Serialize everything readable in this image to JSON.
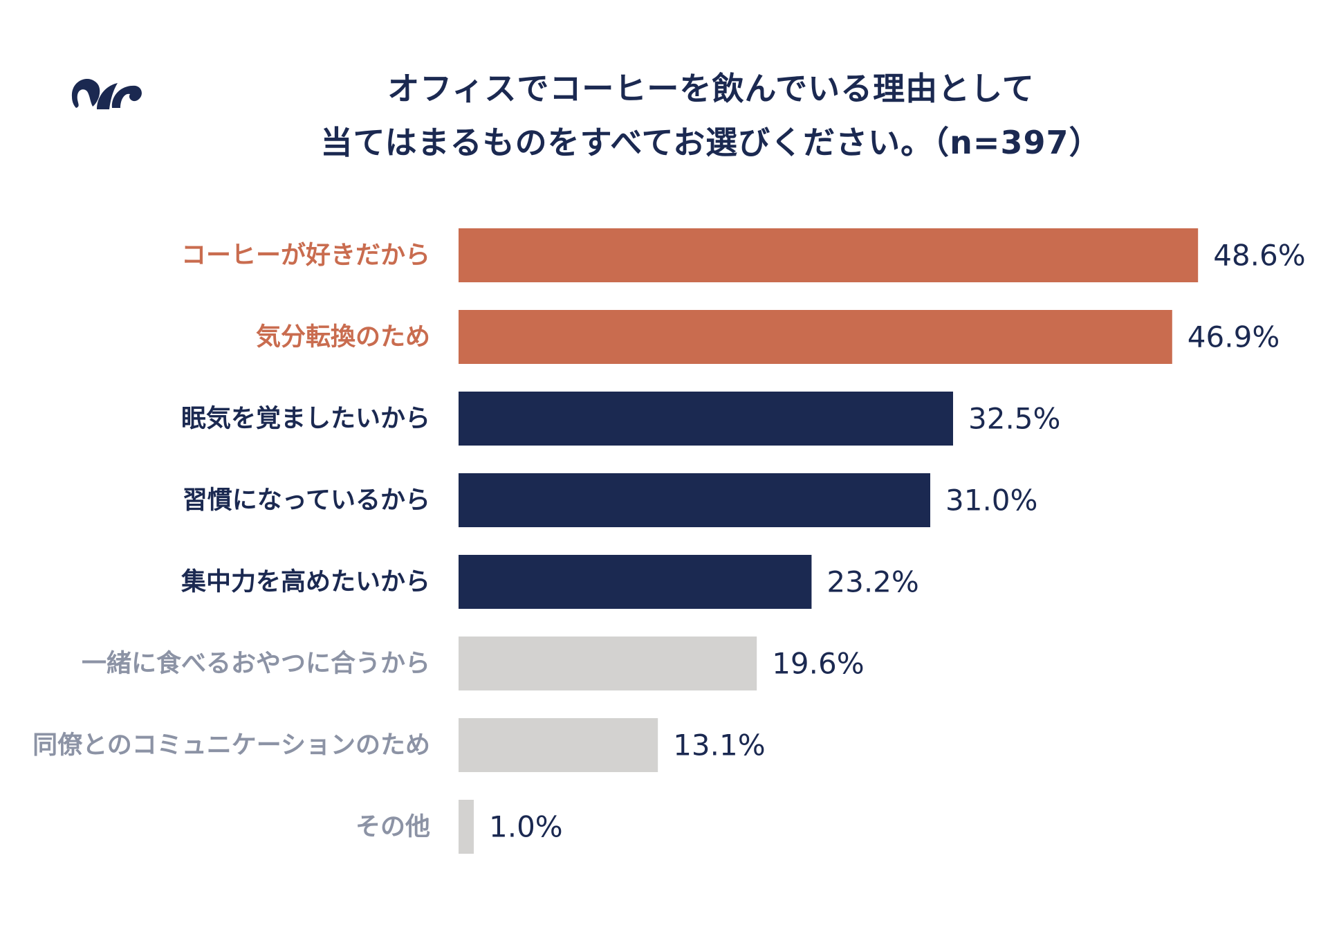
{
  "chart_data": {
    "type": "bar",
    "orientation": "horizontal",
    "title_lines": [
      "オフィスでコーヒーを飲んでいる理由として",
      "当てはまるものをすべてお選びください。（n=397）"
    ],
    "categories": [
      "コーヒーが好きだから",
      "気分転換のため",
      "眠気を覚ましたいから",
      "習慣になっているから",
      "集中力を高めたいから",
      "一緒に食べるおやつに合うから",
      "同僚とのコミュニケーションのため",
      "その他"
    ],
    "values": [
      48.6,
      46.9,
      32.5,
      31.0,
      23.2,
      19.6,
      13.1,
      1.0
    ],
    "value_labels": [
      "48.6%",
      "46.9%",
      "32.5%",
      "31.0%",
      "23.2%",
      "19.6%",
      "13.1%",
      "1.0%"
    ],
    "unit": "%",
    "xlim": [
      0,
      50
    ],
    "grid": false,
    "legend": "none",
    "groups": [
      "top",
      "top",
      "mid",
      "mid",
      "mid",
      "low",
      "low",
      "low"
    ],
    "group_colors": {
      "top": {
        "bar": "#c96c4f",
        "label": "#c96c4f"
      },
      "mid": {
        "bar": "#1b2951",
        "label": "#1b2951"
      },
      "low": {
        "bar": "#d3d2d0",
        "label": "#8c93a5"
      }
    },
    "value_label_color": "#1b2951"
  },
  "logo": {
    "icon": "brand-logo-icon",
    "color": "#1b2951"
  }
}
